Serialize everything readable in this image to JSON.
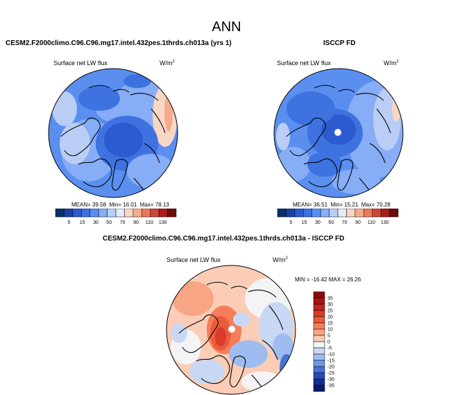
{
  "main_title": "ANN",
  "panels": {
    "model": {
      "title": "CESM2.F2000climo.C96.C96.mg17.intel.432pes.1thrds.ch013a (yrs 1)",
      "variable": "Surface net LW flux",
      "units_base": "W/m",
      "units_exp": "2",
      "stats": {
        "mean_label": "MEAN=",
        "mean": "39.58",
        "min_label": "Min=",
        "min": "16.01",
        "max_label": "Max=",
        "max": "78.13"
      }
    },
    "obs": {
      "title": "ISCCP FD",
      "variable": "Surface net LW flux",
      "units_base": "W/m",
      "units_exp": "2",
      "stats": {
        "mean_label": "MEAN=",
        "mean": "36.51",
        "min_label": "Min=",
        "min": "15.21",
        "max_label": "Max=",
        "max": "70.28"
      }
    },
    "diff": {
      "title": "CESM2.F2000climo.C96.C96.mg17.intel.432pes.1thrds.ch013a - ISCCP FD",
      "variable": "Surface net LW flux",
      "units_base": "W/m",
      "units_exp": "2",
      "stats_text": "MIN = -16.42 MAX = 26.26"
    }
  },
  "chart_data": [
    {
      "type": "heatmap",
      "projection": "north-polar-stereographic",
      "title": "CESM2.F2000climo.C96.C96.mg17.intel.432pes.1thrds.ch013a (yrs 1)",
      "variable": "Surface net LW flux",
      "units": "W/m2",
      "mean": 39.58,
      "min": 16.01,
      "max": 78.13,
      "colorbar": {
        "orientation": "horizontal",
        "levels": [
          5,
          15,
          30,
          50,
          70,
          90,
          110,
          130
        ],
        "tick_labels": [
          "5",
          "15",
          "30",
          "50",
          "70",
          "90",
          "110",
          "130"
        ],
        "colors": [
          "#08306b",
          "#1c3fa8",
          "#2c5bd0",
          "#3e72e0",
          "#5a8ff0",
          "#86adf5",
          "#b9cdf5",
          "#e3ebf8",
          "#f8d6c4",
          "#f4ab8c",
          "#e87a5c",
          "#d2453a",
          "#a81e1e",
          "#6b0d0d"
        ]
      }
    },
    {
      "type": "heatmap",
      "projection": "north-polar-stereographic",
      "title": "ISCCP FD",
      "variable": "Surface net LW flux",
      "units": "W/m2",
      "mean": 36.51,
      "min": 15.21,
      "max": 70.28,
      "colorbar": {
        "orientation": "horizontal",
        "levels": [
          5,
          15,
          30,
          50,
          70,
          90,
          110,
          130
        ],
        "tick_labels": [
          "5",
          "15",
          "30",
          "50",
          "70",
          "90",
          "110",
          "130"
        ],
        "colors": [
          "#08306b",
          "#1c3fa8",
          "#2c5bd0",
          "#3e72e0",
          "#5a8ff0",
          "#86adf5",
          "#b9cdf5",
          "#e3ebf8",
          "#f8d6c4",
          "#f4ab8c",
          "#e87a5c",
          "#d2453a",
          "#a81e1e",
          "#6b0d0d"
        ]
      }
    },
    {
      "type": "heatmap",
      "projection": "north-polar-stereographic",
      "title": "CESM2.F2000climo.C96.C96.mg17.intel.432pes.1thrds.ch013a - ISCCP FD",
      "variable": "Surface net LW flux",
      "units": "W/m2",
      "min": -16.42,
      "max": 26.26,
      "colorbar": {
        "orientation": "vertical",
        "levels": [
          35,
          30,
          25,
          20,
          15,
          10,
          5,
          0,
          -5,
          -10,
          -15,
          -20,
          -25,
          -30,
          -35
        ],
        "tick_labels": [
          "35",
          "30",
          "25",
          "20",
          "15",
          "10",
          "5",
          "0",
          "-5",
          "-10",
          "-15",
          "-20",
          "-25",
          "-30",
          "-35"
        ],
        "colors": [
          "#8c0a0a",
          "#a81414",
          "#c0241c",
          "#d83c2a",
          "#ec5a3c",
          "#f47e5a",
          "#f8a585",
          "#fbcdb6",
          "#f4f4f6",
          "#c8d8f4",
          "#9ebcf0",
          "#7098e6",
          "#4a72d6",
          "#2a4ab8",
          "#132e98",
          "#081c6e"
        ]
      }
    }
  ]
}
